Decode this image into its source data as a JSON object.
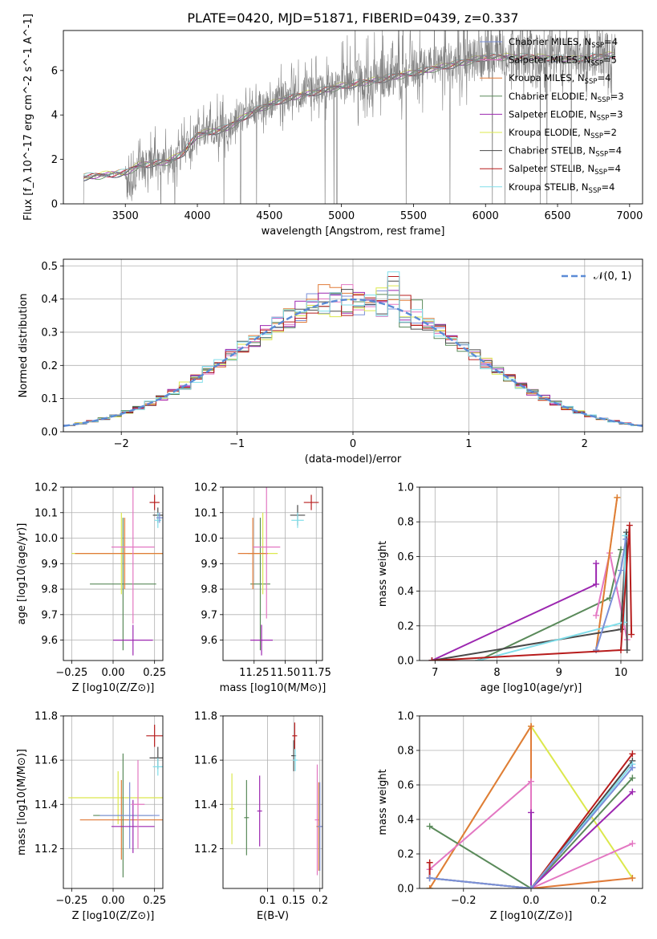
{
  "figure": {
    "title": "PLATE=0420, MJD=51871, FIBERID=0439, z=0.337"
  },
  "chart_data": [
    {
      "id": "spectrum",
      "type": "line",
      "xlabel": "wavelength [Angstrom, rest frame]",
      "ylabel": "Flux [f_λ 10^-17 erg cm^-2 s^-1 A^-1]",
      "xlim": [
        3070,
        7090
      ],
      "ylim": [
        0,
        7.8
      ],
      "xticks": [
        3500,
        4000,
        4500,
        5000,
        5500,
        6000,
        6500,
        7000
      ],
      "yticks": [
        0,
        2,
        4,
        6
      ],
      "observed_color": "#808080",
      "observed_anchors": [
        [
          3210,
          0
        ],
        [
          3212,
          1.2
        ],
        [
          3400,
          1.35
        ],
        [
          3500,
          1.4
        ],
        [
          3520,
          0.6
        ],
        [
          3600,
          1.7
        ],
        [
          3700,
          1.9
        ],
        [
          3800,
          1.9
        ],
        [
          3900,
          2.3
        ],
        [
          4000,
          3.2
        ],
        [
          4200,
          3.5
        ],
        [
          4400,
          4.3
        ],
        [
          4600,
          4.8
        ],
        [
          4800,
          5.1
        ],
        [
          5000,
          5.4
        ],
        [
          5200,
          5.6
        ],
        [
          5500,
          6.0
        ],
        [
          5800,
          6.4
        ],
        [
          6000,
          6.7
        ],
        [
          6300,
          6.7
        ],
        [
          6600,
          6.6
        ],
        [
          6900,
          6.8
        ]
      ],
      "model_anchors": [
        [
          3210,
          1.2
        ],
        [
          3500,
          1.4
        ],
        [
          3600,
          1.75
        ],
        [
          3800,
          1.9
        ],
        [
          3900,
          2.3
        ],
        [
          4000,
          3.1
        ],
        [
          4200,
          3.4
        ],
        [
          4400,
          4.2
        ],
        [
          4600,
          4.7
        ],
        [
          4800,
          5.0
        ],
        [
          5000,
          5.3
        ],
        [
          5200,
          5.5
        ],
        [
          5500,
          5.9
        ],
        [
          5800,
          6.3
        ],
        [
          6000,
          6.6
        ],
        [
          6300,
          6.6
        ],
        [
          6600,
          6.5
        ],
        [
          6900,
          6.7
        ]
      ],
      "legend": [
        {
          "label": "Chabrier MILES, N",
          "sub": "SSP",
          "suffix": "=4",
          "color": "#7b8fd8"
        },
        {
          "label": "Salpeter MILES, N",
          "sub": "SSP",
          "suffix": "=5",
          "color": "#e377c2"
        },
        {
          "label": "Kroupa MILES, N",
          "sub": "SSP",
          "suffix": "=4",
          "color": "#e07b39"
        },
        {
          "label": "Chabrier ELODIE, N",
          "sub": "SSP",
          "suffix": "=3",
          "color": "#5a8a5a"
        },
        {
          "label": "Salpeter ELODIE, N",
          "sub": "SSP",
          "suffix": "=3",
          "color": "#9c27b0"
        },
        {
          "label": "Kroupa ELODIE, N",
          "sub": "SSP",
          "suffix": "=2",
          "color": "#dce84d"
        },
        {
          "label": "Chabrier STELIB, N",
          "sub": "SSP",
          "suffix": "=4",
          "color": "#4a4a4a"
        },
        {
          "label": "Salpeter STELIB, N",
          "sub": "SSP",
          "suffix": "=4",
          "color": "#b71c1c"
        },
        {
          "label": "Kroupa STELIB, N",
          "sub": "SSP",
          "suffix": "=4",
          "color": "#80deea"
        }
      ]
    },
    {
      "id": "residuals",
      "type": "line",
      "xlabel": "(data-model)/error",
      "ylabel": "Normed distribution",
      "xlim": [
        -2.5,
        2.5
      ],
      "ylim": [
        0,
        0.52
      ],
      "xticks": [
        -2,
        -1,
        0,
        1,
        2
      ],
      "yticks": [
        0.0,
        0.1,
        0.2,
        0.3,
        0.4,
        0.5
      ],
      "gaussian_label": "𝒩(0, 1)",
      "gaussian_color": "#5b8bd6",
      "bin_width": 0.1,
      "series_colors": [
        "#7b8fd8",
        "#e377c2",
        "#e07b39",
        "#5a8a5a",
        "#9c27b0",
        "#dce84d",
        "#4a4a4a",
        "#b71c1c",
        "#80deea"
      ]
    },
    {
      "id": "age-vs-Z",
      "type": "scatter",
      "xlabel": "Z [log10(Z/Z⊙)]",
      "ylabel": "age [log10(age/yr)]",
      "xlim": [
        -0.3,
        0.3
      ],
      "ylim": [
        9.52,
        10.2
      ],
      "xticks": [
        -0.25,
        0.0,
        0.25
      ],
      "xticklabels": [
        "−0.25",
        "0.00",
        "0.25"
      ],
      "yticks": [
        9.6,
        9.7,
        9.8,
        9.9,
        10.0,
        10.1,
        10.2
      ],
      "points": [
        {
          "x": 0.06,
          "y": 9.82,
          "xerr": 0.2,
          "yerr": 0.26,
          "color": "#5a8a5a"
        },
        {
          "x": 0.05,
          "y": 9.94,
          "xerr": 0.3,
          "yerr": 0.16,
          "color": "#dce84d"
        },
        {
          "x": 0.07,
          "y": 9.94,
          "xerr": 0.3,
          "yerr": 0.14,
          "color": "#e07b39"
        },
        {
          "x": 0.12,
          "y": 9.965,
          "xerr": 0.13,
          "yerr": 0.3,
          "color": "#e377c2"
        },
        {
          "x": 0.12,
          "y": 9.6,
          "xerr": 0.12,
          "yerr": 0.06,
          "color": "#9c27b0"
        },
        {
          "x": 0.25,
          "y": 10.14,
          "xerr": 0.03,
          "yerr": 0.03,
          "color": "#b71c1c"
        },
        {
          "x": 0.27,
          "y": 10.09,
          "xerr": 0.03,
          "yerr": 0.03,
          "color": "#4a4a4a"
        },
        {
          "x": 0.27,
          "y": 10.07,
          "xerr": 0.02,
          "yerr": 0.03,
          "color": "#80deea"
        },
        {
          "x": 0.28,
          "y": 10.08,
          "xerr": 0.02,
          "yerr": 0.02,
          "color": "#7b8fd8"
        }
      ]
    },
    {
      "id": "age-vs-mass",
      "type": "scatter",
      "xlabel": "mass [log10(M/M⊙)]",
      "ylabel": "",
      "xlim": [
        11.0,
        11.8
      ],
      "ylim": [
        9.52,
        10.2
      ],
      "xticks": [
        11.25,
        11.5,
        11.75
      ],
      "xticklabels": [
        "11.25",
        "11.50",
        "11.75"
      ],
      "yticks": [
        9.6,
        9.7,
        9.8,
        9.9,
        10.0,
        10.1,
        10.2
      ],
      "points": [
        {
          "x": 11.3,
          "y": 9.82,
          "xerr": 0.08,
          "yerr": 0.26,
          "color": "#5a8a5a"
        },
        {
          "x": 11.32,
          "y": 9.94,
          "xerr": 0.12,
          "yerr": 0.16,
          "color": "#dce84d"
        },
        {
          "x": 11.24,
          "y": 9.94,
          "xerr": 0.12,
          "yerr": 0.14,
          "color": "#e07b39"
        },
        {
          "x": 11.35,
          "y": 9.965,
          "xerr": 0.11,
          "yerr": 0.28,
          "color": "#e377c2"
        },
        {
          "x": 11.31,
          "y": 9.6,
          "xerr": 0.09,
          "yerr": 0.06,
          "color": "#9c27b0"
        },
        {
          "x": 11.71,
          "y": 10.14,
          "xerr": 0.06,
          "yerr": 0.03,
          "color": "#b71c1c"
        },
        {
          "x": 11.6,
          "y": 10.09,
          "xerr": 0.06,
          "yerr": 0.04,
          "color": "#4a4a4a"
        },
        {
          "x": 11.6,
          "y": 10.07,
          "xerr": 0.05,
          "yerr": 0.03,
          "color": "#80deea"
        }
      ]
    },
    {
      "id": "weight-vs-age",
      "type": "line",
      "xlabel": "age [log10(age/yr)]",
      "ylabel": "mass weight",
      "xlim": [
        6.75,
        10.35
      ],
      "ylim": [
        0,
        1.0
      ],
      "xticks": [
        7,
        8,
        9,
        10
      ],
      "yticks": [
        0.0,
        0.2,
        0.4,
        0.6,
        0.8,
        1.0
      ],
      "series": [
        {
          "color": "#9c27b0",
          "points": [
            [
              6.95,
              0.0
            ],
            [
              9.6,
              0.44
            ],
            [
              9.6,
              0.56
            ]
          ]
        },
        {
          "color": "#5a8a5a",
          "points": [
            [
              7.7,
              0.0
            ],
            [
              9.82,
              0.36
            ],
            [
              10.0,
              0.64
            ]
          ]
        },
        {
          "color": "#e377c2",
          "points": [
            [
              9.6,
              0.26
            ],
            [
              9.82,
              0.62
            ],
            [
              10.1,
              0.12
            ]
          ]
        },
        {
          "color": "#dce84d",
          "points": [
            [
              9.6,
              0.06
            ],
            [
              9.94,
              0.94
            ]
          ]
        },
        {
          "color": "#e07b39",
          "points": [
            [
              9.6,
              0.06
            ],
            [
              9.94,
              0.94
            ]
          ]
        },
        {
          "color": "#4a4a4a",
          "points": [
            [
              6.95,
              0.0
            ],
            [
              10.0,
              0.18
            ],
            [
              10.09,
              0.74
            ],
            [
              10.1,
              0.06
            ]
          ]
        },
        {
          "color": "#80deea",
          "points": [
            [
              7.7,
              0.0
            ],
            [
              10.05,
              0.22
            ],
            [
              10.07,
              0.72
            ]
          ]
        },
        {
          "color": "#7b8fd8",
          "points": [
            [
              9.6,
              0.06
            ],
            [
              10.0,
              0.52
            ],
            [
              10.08,
              0.7
            ]
          ]
        },
        {
          "color": "#b71c1c",
          "points": [
            [
              6.95,
              0.0
            ],
            [
              10.0,
              0.06
            ],
            [
              10.14,
              0.78
            ],
            [
              10.17,
              0.15
            ]
          ]
        }
      ]
    },
    {
      "id": "mass-vs-Z",
      "type": "scatter",
      "xlabel": "Z [log10(Z/Z⊙)]",
      "ylabel": "mass [log10(M/M⊙)]",
      "xlim": [
        -0.3,
        0.3
      ],
      "ylim": [
        11.02,
        11.8
      ],
      "xticks": [
        -0.25,
        0.0,
        0.25
      ],
      "xticklabels": [
        "−0.25",
        "0.00",
        "0.25"
      ],
      "yticks": [
        11.2,
        11.4,
        11.6,
        11.8
      ],
      "points": [
        {
          "x": 0.03,
          "y": 11.43,
          "xerr": 0.3,
          "yerr": 0.12,
          "color": "#dce84d"
        },
        {
          "x": 0.05,
          "y": 11.33,
          "xerr": 0.25,
          "yerr": 0.18,
          "color": "#e07b39"
        },
        {
          "x": 0.06,
          "y": 11.35,
          "xerr": 0.18,
          "yerr": 0.28,
          "color": "#5a8a5a"
        },
        {
          "x": 0.1,
          "y": 11.35,
          "xerr": 0.18,
          "yerr": 0.15,
          "color": "#7b8fd8"
        },
        {
          "x": 0.12,
          "y": 11.3,
          "xerr": 0.13,
          "yerr": 0.12,
          "color": "#9c27b0"
        },
        {
          "x": 0.15,
          "y": 11.4,
          "xerr": 0.04,
          "yerr": 0.2,
          "color": "#e377c2"
        },
        {
          "x": 0.25,
          "y": 11.71,
          "xerr": 0.05,
          "yerr": 0.05,
          "color": "#b71c1c"
        },
        {
          "x": 0.27,
          "y": 11.61,
          "xerr": 0.05,
          "yerr": 0.05,
          "color": "#4a4a4a"
        },
        {
          "x": 0.27,
          "y": 11.57,
          "xerr": 0.03,
          "yerr": 0.04,
          "color": "#80deea"
        }
      ]
    },
    {
      "id": "mass-vs-ebv",
      "type": "scatter",
      "xlabel": "E(B-V)",
      "ylabel": "",
      "xlim": [
        0.015,
        0.205
      ],
      "ylim": [
        11.02,
        11.8
      ],
      "xticks": [
        0.1,
        0.15,
        0.2
      ],
      "xticklabels": [
        "0.1",
        "0.15",
        "0.2"
      ],
      "yticks": [
        11.2,
        11.4,
        11.6,
        11.8
      ],
      "points": [
        {
          "x": 0.032,
          "y": 11.38,
          "yerr": 0.16,
          "color": "#dce84d"
        },
        {
          "x": 0.06,
          "y": 11.34,
          "yerr": 0.17,
          "color": "#5a8a5a"
        },
        {
          "x": 0.085,
          "y": 11.37,
          "yerr": 0.16,
          "color": "#9c27b0"
        },
        {
          "x": 0.15,
          "y": 11.62,
          "yerr": 0.07,
          "color": "#4a4a4a"
        },
        {
          "x": 0.152,
          "y": 11.71,
          "yerr": 0.06,
          "color": "#b71c1c"
        },
        {
          "x": 0.153,
          "y": 11.6,
          "yerr": 0.05,
          "color": "#80deea"
        },
        {
          "x": 0.195,
          "y": 11.33,
          "yerr": 0.25,
          "color": "#e377c2"
        },
        {
          "x": 0.198,
          "y": 11.3,
          "yerr": 0.2,
          "color": "#e07b39"
        },
        {
          "x": 0.2,
          "y": 11.3,
          "yerr": 0.2,
          "color": "#7b8fd8"
        }
      ]
    },
    {
      "id": "weight-vs-Z",
      "type": "line",
      "xlabel": "Z [log10(Z/Z⊙)]",
      "ylabel": "mass weight",
      "xlim": [
        -0.33,
        0.33
      ],
      "ylim": [
        0,
        1.0
      ],
      "xticks": [
        -0.2,
        0.0,
        0.2
      ],
      "xticklabels": [
        "−0.2",
        "0.0",
        "0.2"
      ],
      "yticks": [
        0.0,
        0.2,
        0.4,
        0.6,
        0.8,
        1.0
      ],
      "series": [
        {
          "color": "#dce84d",
          "points": [
            [
              -0.3,
              0.0
            ],
            [
              0.0,
              0.94
            ],
            [
              0.3,
              0.06
            ]
          ]
        },
        {
          "color": "#e07b39",
          "points": [
            [
              -0.3,
              0.0
            ],
            [
              0.0,
              0.94
            ],
            [
              0.0,
              0.0
            ],
            [
              0.3,
              0.06
            ]
          ]
        },
        {
          "color": "#5a8a5a",
          "points": [
            [
              -0.3,
              0.36
            ],
            [
              0.0,
              0.0
            ],
            [
              0.3,
              0.64
            ]
          ]
        },
        {
          "color": "#e377c2",
          "points": [
            [
              -0.3,
              0.11
            ],
            [
              0.0,
              0.62
            ],
            [
              0.0,
              0.0
            ],
            [
              0.3,
              0.26
            ]
          ]
        },
        {
          "color": "#9c27b0",
          "points": [
            [
              0.0,
              0.0
            ],
            [
              0.0,
              0.44
            ],
            [
              0.0,
              0.0
            ],
            [
              0.3,
              0.56
            ]
          ]
        },
        {
          "color": "#4a4a4a",
          "points": [
            [
              -0.3,
              0.06
            ],
            [
              0.0,
              0.0
            ],
            [
              0.3,
              0.74
            ]
          ]
        },
        {
          "color": "#b71c1c",
          "points": [
            [
              -0.3,
              0.15
            ],
            [
              -0.3,
              0.06
            ],
            [
              0.0,
              0.0
            ],
            [
              0.3,
              0.78
            ]
          ]
        },
        {
          "color": "#80deea",
          "points": [
            [
              -0.3,
              0.06
            ],
            [
              0.0,
              0.0
            ],
            [
              0.3,
              0.72
            ]
          ]
        },
        {
          "color": "#7b8fd8",
          "points": [
            [
              -0.3,
              0.06
            ],
            [
              0.0,
              0.0
            ],
            [
              0.3,
              0.7
            ]
          ]
        }
      ]
    }
  ]
}
